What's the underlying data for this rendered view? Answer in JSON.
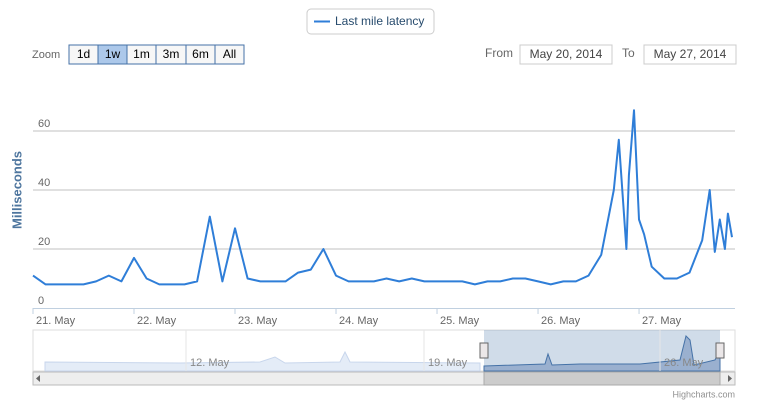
{
  "chart_data": {
    "type": "line",
    "y_label": "Milliseconds",
    "series": [
      {
        "name": "Last mile latency",
        "color": "#2f7ed8",
        "x": [
          21.0,
          21.125,
          21.25,
          21.375,
          21.5,
          21.625,
          21.75,
          21.875,
          22.0,
          22.125,
          22.25,
          22.375,
          22.5,
          22.625,
          22.75,
          22.875,
          23.0,
          23.125,
          23.25,
          23.375,
          23.5,
          23.625,
          23.75,
          23.875,
          24.0,
          24.125,
          24.25,
          24.375,
          24.5,
          24.625,
          24.75,
          24.875,
          25.0,
          25.125,
          25.25,
          25.375,
          25.5,
          25.625,
          25.75,
          25.875,
          26.0,
          26.125,
          26.25,
          26.375,
          26.5,
          26.625,
          26.75,
          26.8,
          26.875,
          26.9,
          26.95,
          27.0,
          27.05,
          27.125,
          27.25,
          27.375,
          27.5,
          27.625,
          27.7,
          27.75,
          27.8,
          27.85,
          27.88,
          27.92
        ],
        "values": [
          11,
          8,
          8,
          8,
          8,
          9,
          11,
          9,
          17,
          10,
          8,
          8,
          8,
          9,
          31,
          9,
          27,
          10,
          9,
          9,
          9,
          12,
          13,
          20,
          11,
          9,
          9,
          9,
          10,
          9,
          10,
          9,
          9,
          9,
          9,
          8,
          9,
          9,
          10,
          10,
          9,
          8,
          9,
          9,
          11,
          18,
          40,
          57,
          20,
          45,
          67,
          30,
          25,
          14,
          10,
          10,
          12,
          23,
          40,
          19,
          30,
          20,
          32,
          24
        ]
      }
    ],
    "xlim": [
      21,
      27.95
    ],
    "xticks": [
      {
        "value": 21,
        "label": "21. May"
      },
      {
        "value": 22,
        "label": "22. May"
      },
      {
        "value": 23,
        "label": "23. May"
      },
      {
        "value": 24,
        "label": "24. May"
      },
      {
        "value": 25,
        "label": "25. May"
      },
      {
        "value": 26,
        "label": "26. May"
      },
      {
        "value": 27,
        "label": "27. May"
      }
    ],
    "ylim": [
      0,
      80
    ],
    "yticks": [
      0,
      20,
      40,
      60
    ],
    "grid": true,
    "range_selector": {
      "label": "Zoom",
      "buttons": [
        "1d",
        "1w",
        "1m",
        "3m",
        "6m",
        "All"
      ],
      "selected": 1,
      "from_label": "From",
      "from": "May 20, 2014",
      "to_label": "To",
      "to": "May 27, 2014"
    },
    "navigator_labels": [
      "12. May",
      "19. May",
      "26. May"
    ],
    "credits": "Highcharts.com"
  }
}
